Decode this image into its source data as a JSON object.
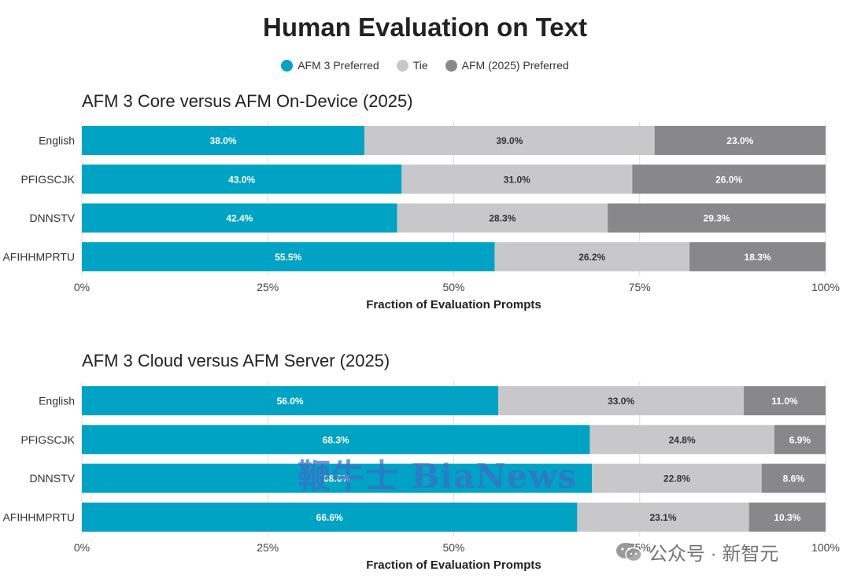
{
  "title": "Human Evaluation on Text",
  "legend": [
    {
      "label": "AFM 3 Preferred",
      "color": "#00a3c4"
    },
    {
      "label": "Tie",
      "color": "#c8c8cb"
    },
    {
      "label": "AFM (2025) Preferred",
      "color": "#88888b"
    }
  ],
  "chart_data": [
    {
      "type": "bar",
      "orientation": "horizontal-stacked",
      "title": "AFM 3 Core versus AFM On-Device (2025)",
      "categories": [
        "English",
        "PFIGSCJK",
        "DNNSTV",
        "AFIHHMPRTU"
      ],
      "series": [
        {
          "name": "AFM 3 Preferred",
          "values": [
            38.0,
            43.0,
            42.4,
            55.5
          ]
        },
        {
          "name": "Tie",
          "values": [
            39.0,
            31.0,
            28.3,
            26.2
          ]
        },
        {
          "name": "AFM (2025) Preferred",
          "values": [
            23.0,
            26.0,
            29.3,
            18.3
          ]
        }
      ],
      "xlabel": "Fraction of Evaluation Prompts",
      "xlim": [
        0,
        100
      ],
      "xticks": [
        "0%",
        "25%",
        "50%",
        "75%",
        "100%"
      ],
      "grid": true
    },
    {
      "type": "bar",
      "orientation": "horizontal-stacked",
      "title": "AFM 3 Cloud versus AFM Server (2025)",
      "categories": [
        "English",
        "PFIGSCJK",
        "DNNSTV",
        "AFIHHMPRTU"
      ],
      "series": [
        {
          "name": "AFM 3 Preferred",
          "values": [
            56.0,
            68.3,
            68.6,
            66.6
          ]
        },
        {
          "name": "Tie",
          "values": [
            33.0,
            24.8,
            22.8,
            23.1
          ]
        },
        {
          "name": "AFM (2025) Preferred",
          "values": [
            11.0,
            6.9,
            8.6,
            10.3
          ]
        }
      ],
      "xlabel": "Fraction of Evaluation Prompts",
      "xlim": [
        0,
        100
      ],
      "xticks": [
        "0%",
        "25%",
        "50%",
        "75%",
        "100%"
      ],
      "grid": true
    }
  ],
  "watermark": {
    "text": "鞭牛士 BiaNews"
  },
  "wechat": {
    "label": "公众号 · 新智元"
  }
}
